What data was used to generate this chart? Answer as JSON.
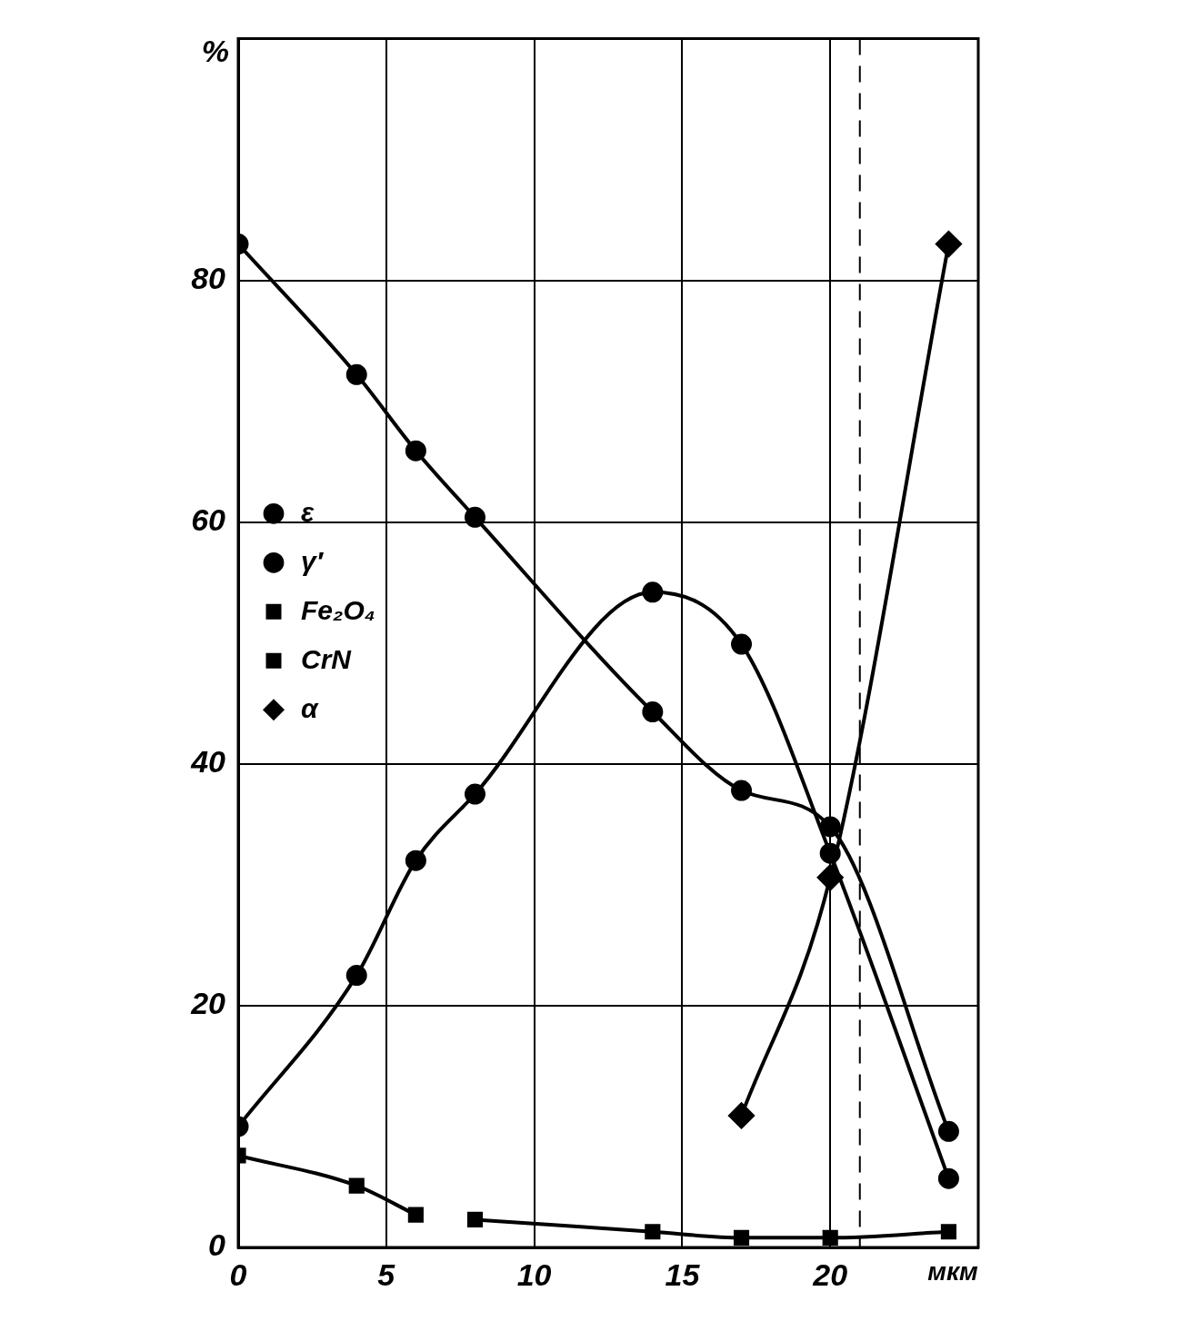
{
  "chart_data": {
    "type": "line",
    "xlabel": "мкм",
    "ylabel": "%",
    "xlim": [
      0,
      25
    ],
    "xticks": [
      0,
      5,
      10,
      15,
      20
    ],
    "ylim": [
      0,
      100
    ],
    "yticks": [
      0,
      20,
      40,
      60,
      80
    ],
    "grid": true,
    "legend": "top",
    "line_style": "solid",
    "ref_lines": [
      {
        "axis": "x",
        "value": 21,
        "line_style": "dashed",
        "color": "#000000"
      }
    ],
    "series": [
      {
        "name": "ε",
        "color": "#000000",
        "marker": "circle",
        "x": [
          0,
          4,
          6,
          8,
          14,
          17,
          20,
          24
        ],
        "values": [
          83,
          72.2,
          65.9,
          60.4,
          44.3,
          37.8,
          34.8,
          9.6
        ]
      },
      {
        "name": "γ′",
        "color": "#000000",
        "marker": "circle",
        "x": [
          0,
          4,
          6,
          8,
          14,
          17,
          20,
          24
        ],
        "values": [
          10,
          22.5,
          32,
          37.5,
          54.2,
          49.9,
          32.6,
          5.7
        ]
      },
      {
        "name": "Fe₂O₄",
        "color": "#000000",
        "marker": "square",
        "x": [
          0,
          4,
          6
        ],
        "values": [
          7.6,
          5.1,
          2.7
        ]
      },
      {
        "name": "CrN",
        "color": "#000000",
        "marker": "square",
        "x": [
          8,
          14,
          17,
          20,
          24
        ],
        "values": [
          2.3,
          1.3,
          0.8,
          0.8,
          1.3
        ]
      },
      {
        "name": "α",
        "color": "#000000",
        "marker": "diamond",
        "x": [
          17,
          20,
          24
        ],
        "values": [
          10.9,
          30.6,
          83
        ]
      }
    ]
  }
}
